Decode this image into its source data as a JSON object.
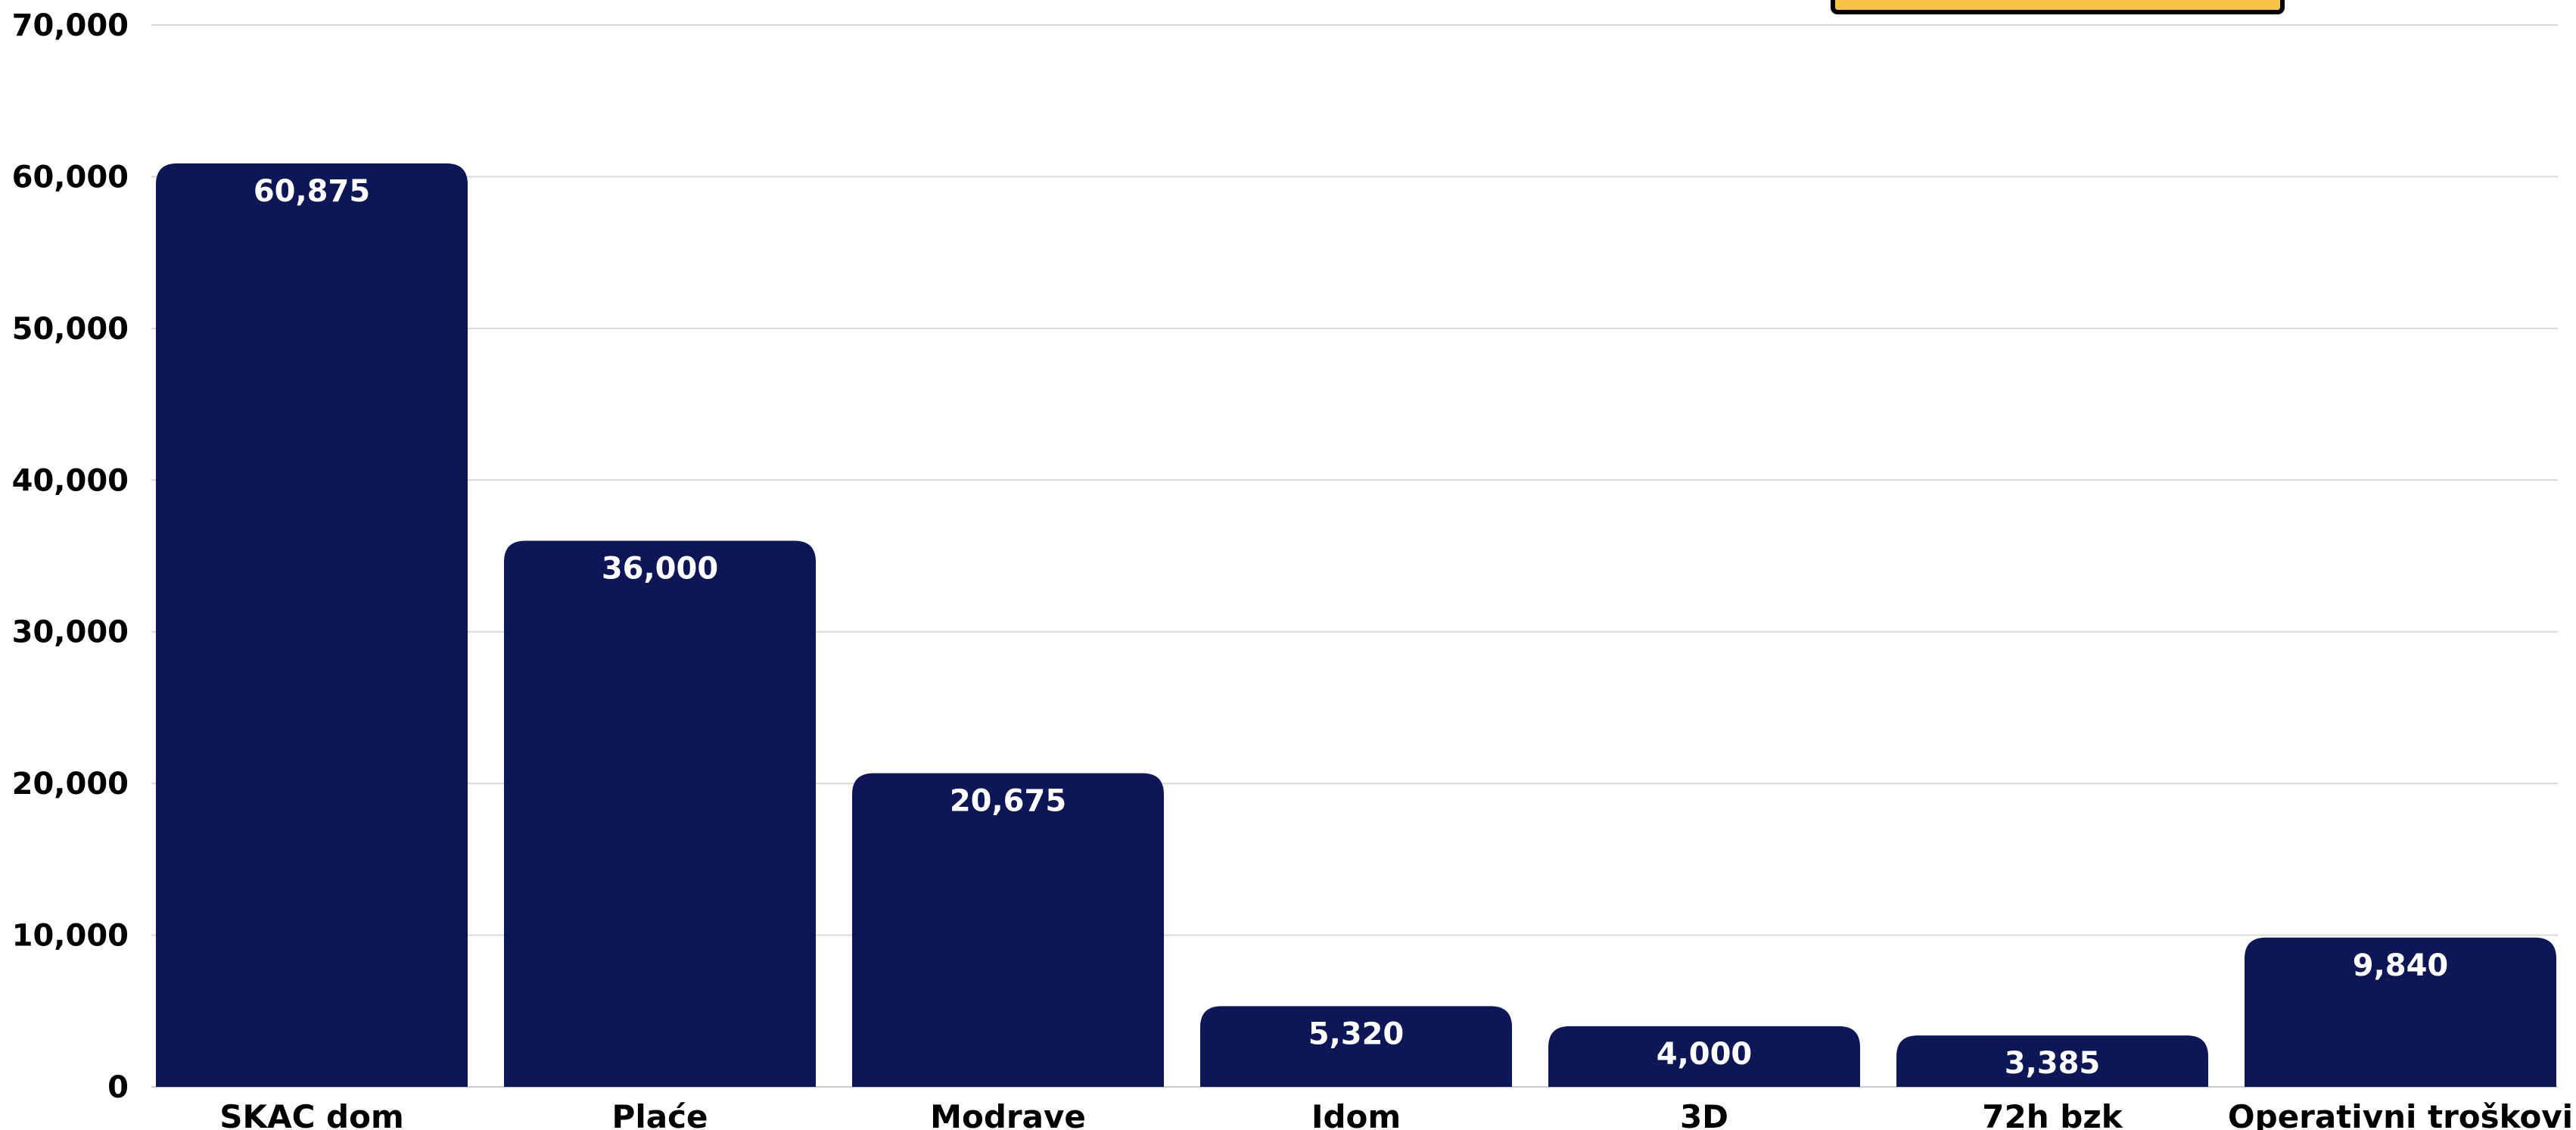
{
  "chart_data": {
    "type": "bar",
    "categories": [
      "SKAC dom",
      "Plaće",
      "Modrave",
      "Idom",
      "3D",
      "72h bzk",
      "Operativni troškovi"
    ],
    "values": [
      60875,
      36000,
      20675,
      5320,
      4000,
      3385,
      9840
    ],
    "value_labels": [
      "60,875",
      "36,000",
      "20,675",
      "5,320",
      "4,000",
      "3,385",
      "9,840"
    ],
    "yticks": [
      "0",
      "10,000",
      "20,000",
      "30,000",
      "40,000",
      "50,000",
      "60,000",
      "70,000"
    ],
    "ylim": [
      0,
      70000
    ],
    "grid": true,
    "bar_color": "#0d1657",
    "legend_color": "#f6c344"
  }
}
